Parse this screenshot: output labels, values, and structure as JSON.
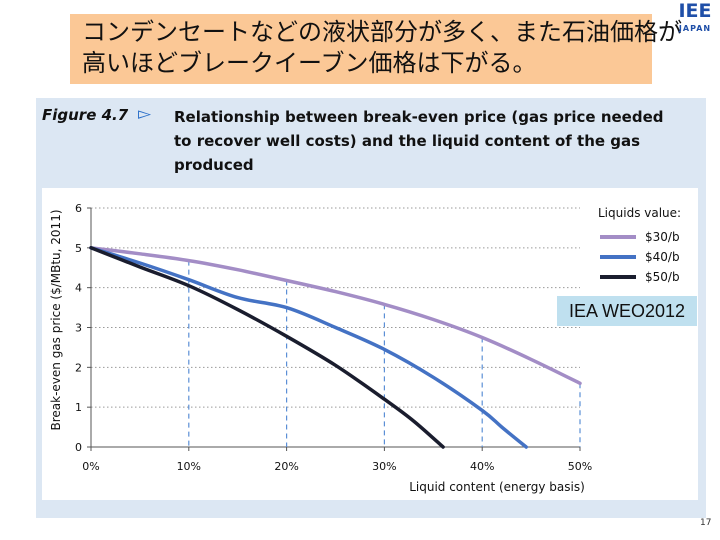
{
  "headline": {
    "line1": "コンデンセートなどの液状部分が多く、また石油価格が",
    "line2": "高いほどブレークイーブン価格は下がる。"
  },
  "logo": {
    "main": "IEE",
    "sub": "JAPAN"
  },
  "figure": {
    "label": "Figure 4.7",
    "arrow": "▻",
    "title_lines": [
      "Relationship between break-even price (gas price needed",
      "to recover well costs) and the liquid content of the gas",
      "produced"
    ]
  },
  "source_label": "IEA WEO2012",
  "page_number": "17",
  "chart_data": {
    "type": "line",
    "xlabel": "Liquid content (energy basis)",
    "ylabel": "Break-even gas price ($/MBtu, 2011)",
    "xlim": [
      0,
      50
    ],
    "ylim": [
      0,
      6
    ],
    "x_ticks": [
      "0%",
      "10%",
      "20%",
      "30%",
      "40%",
      "50%"
    ],
    "x_tick_values": [
      0,
      10,
      20,
      30,
      40,
      50
    ],
    "y_ticks": [
      "0",
      "1",
      "2",
      "3",
      "4",
      "5",
      "6"
    ],
    "y_tick_values": [
      0,
      1,
      2,
      3,
      4,
      5,
      6
    ],
    "grid": "horizontal dotted",
    "legend_title": "Liquids value:",
    "legend_position": "top-right",
    "series": [
      {
        "name": "$30/b",
        "color": "#a38dc6",
        "x": [
          0,
          5,
          10,
          15,
          20,
          25,
          30,
          35,
          40,
          45,
          50
        ],
        "y": [
          5.0,
          4.85,
          4.68,
          4.45,
          4.18,
          3.9,
          3.58,
          3.2,
          2.75,
          2.2,
          1.6
        ]
      },
      {
        "name": "$40/b",
        "color": "#4472c4",
        "x": [
          0,
          5,
          10,
          15,
          20,
          25,
          30,
          35,
          40,
          42,
          44.5
        ],
        "y": [
          5.0,
          4.62,
          4.2,
          3.75,
          3.5,
          3.0,
          2.45,
          1.75,
          0.92,
          0.5,
          0.0
        ]
      },
      {
        "name": "$50/b",
        "color": "#1a1d2e",
        "x": [
          0,
          5,
          10,
          15,
          20,
          25,
          30,
          33,
          36
        ],
        "y": [
          5.0,
          4.52,
          4.05,
          3.45,
          2.78,
          2.05,
          1.2,
          0.65,
          0.0
        ]
      }
    ],
    "dashed_drops": [
      {
        "x": 10,
        "y": 4.68
      },
      {
        "x": 20,
        "y": 4.18
      },
      {
        "x": 30,
        "y": 3.58
      },
      {
        "x": 40,
        "y": 2.75
      },
      {
        "x": 50,
        "y": 1.6
      }
    ]
  }
}
